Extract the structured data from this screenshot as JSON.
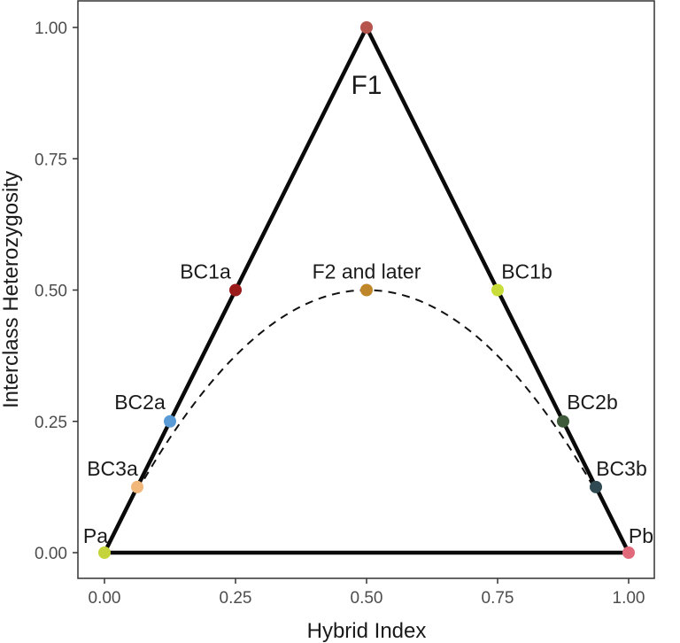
{
  "chart_data": {
    "type": "scatter",
    "title": "",
    "xlabel": "Hybrid Index",
    "ylabel": "Interclass Heterozygosity",
    "xlim": [
      -0.05,
      1.05
    ],
    "ylim": [
      -0.05,
      1.03
    ],
    "xticks": [
      "0.00",
      "0.25",
      "0.50",
      "0.75",
      "1.00"
    ],
    "yticks": [
      "0.00",
      "0.25",
      "0.50",
      "0.75",
      "1.00"
    ],
    "grid": false,
    "triangle": [
      [
        0,
        0
      ],
      [
        0.5,
        1
      ],
      [
        1,
        0
      ]
    ],
    "dashed_curve": "y = 2x(1 - x)",
    "points": [
      {
        "label": "Pa",
        "x": 0.0,
        "y": 0.0,
        "color": "#c5d43a"
      },
      {
        "label": "BC3a",
        "x": 0.0625,
        "y": 0.125,
        "color": "#f2b77b"
      },
      {
        "label": "BC2a",
        "x": 0.125,
        "y": 0.25,
        "color": "#5b9bd5"
      },
      {
        "label": "BC1a",
        "x": 0.25,
        "y": 0.5,
        "color": "#9b1b1b"
      },
      {
        "label": "F1",
        "x": 0.5,
        "y": 1.0,
        "color": "#b5554e"
      },
      {
        "label": "F2 and later",
        "x": 0.5,
        "y": 0.5,
        "color": "#c0862a"
      },
      {
        "label": "BC1b",
        "x": 0.75,
        "y": 0.5,
        "color": "#c9dd3a"
      },
      {
        "label": "BC2b",
        "x": 0.875,
        "y": 0.25,
        "color": "#3e5a3a"
      },
      {
        "label": "BC3b",
        "x": 0.9375,
        "y": 0.125,
        "color": "#2f4a52"
      },
      {
        "label": "Pb",
        "x": 1.0,
        "y": 0.0,
        "color": "#e06a7c"
      }
    ]
  }
}
